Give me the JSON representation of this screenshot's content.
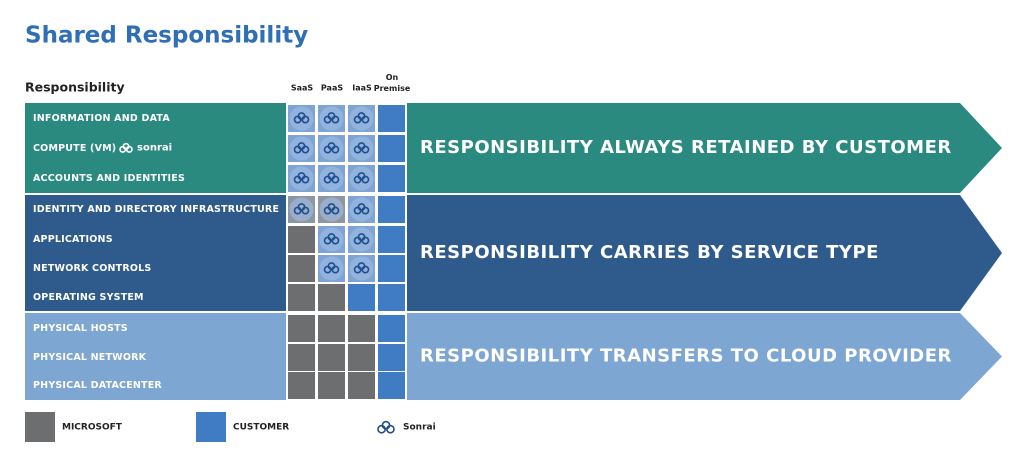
{
  "title": "Shared Responsibility",
  "header": "Responsibility",
  "columns": [
    "SaaS",
    "PaaS",
    "IaaS",
    "On Premise"
  ],
  "logo": "sonrai",
  "bands": [
    {
      "rows": [
        "INFORMATION AND DATA",
        "COMPUTE (VM)",
        "ACCOUNTS AND IDENTITIES"
      ],
      "arrow": "RESPONSIBILITY ALWAYS  RETAINED BY CUSTOMER",
      "color": "#2b8a80"
    },
    {
      "rows": [
        "IDENTITY AND DIRECTORY INFRASTRUCTURE",
        "APPLICATIONS",
        "NETWORK CONTROLS",
        "OPERATING SYSTEM"
      ],
      "arrow": "RESPONSIBILITY CARRIES BY SERVICE TYPE",
      "color": "#2f5b8c"
    },
    {
      "rows": [
        "PHYSICAL HOSTS",
        "PHYSICAL NETWORK",
        "PHYSICAL DATACENTER"
      ],
      "arrow": "RESPONSIBILITY TRANSFERS TO CLOUD PROVIDER",
      "color": "#7ea6d3"
    }
  ],
  "legend": [
    "MICROSOFT",
    "CUSTOMER",
    "Sonrai"
  ]
}
